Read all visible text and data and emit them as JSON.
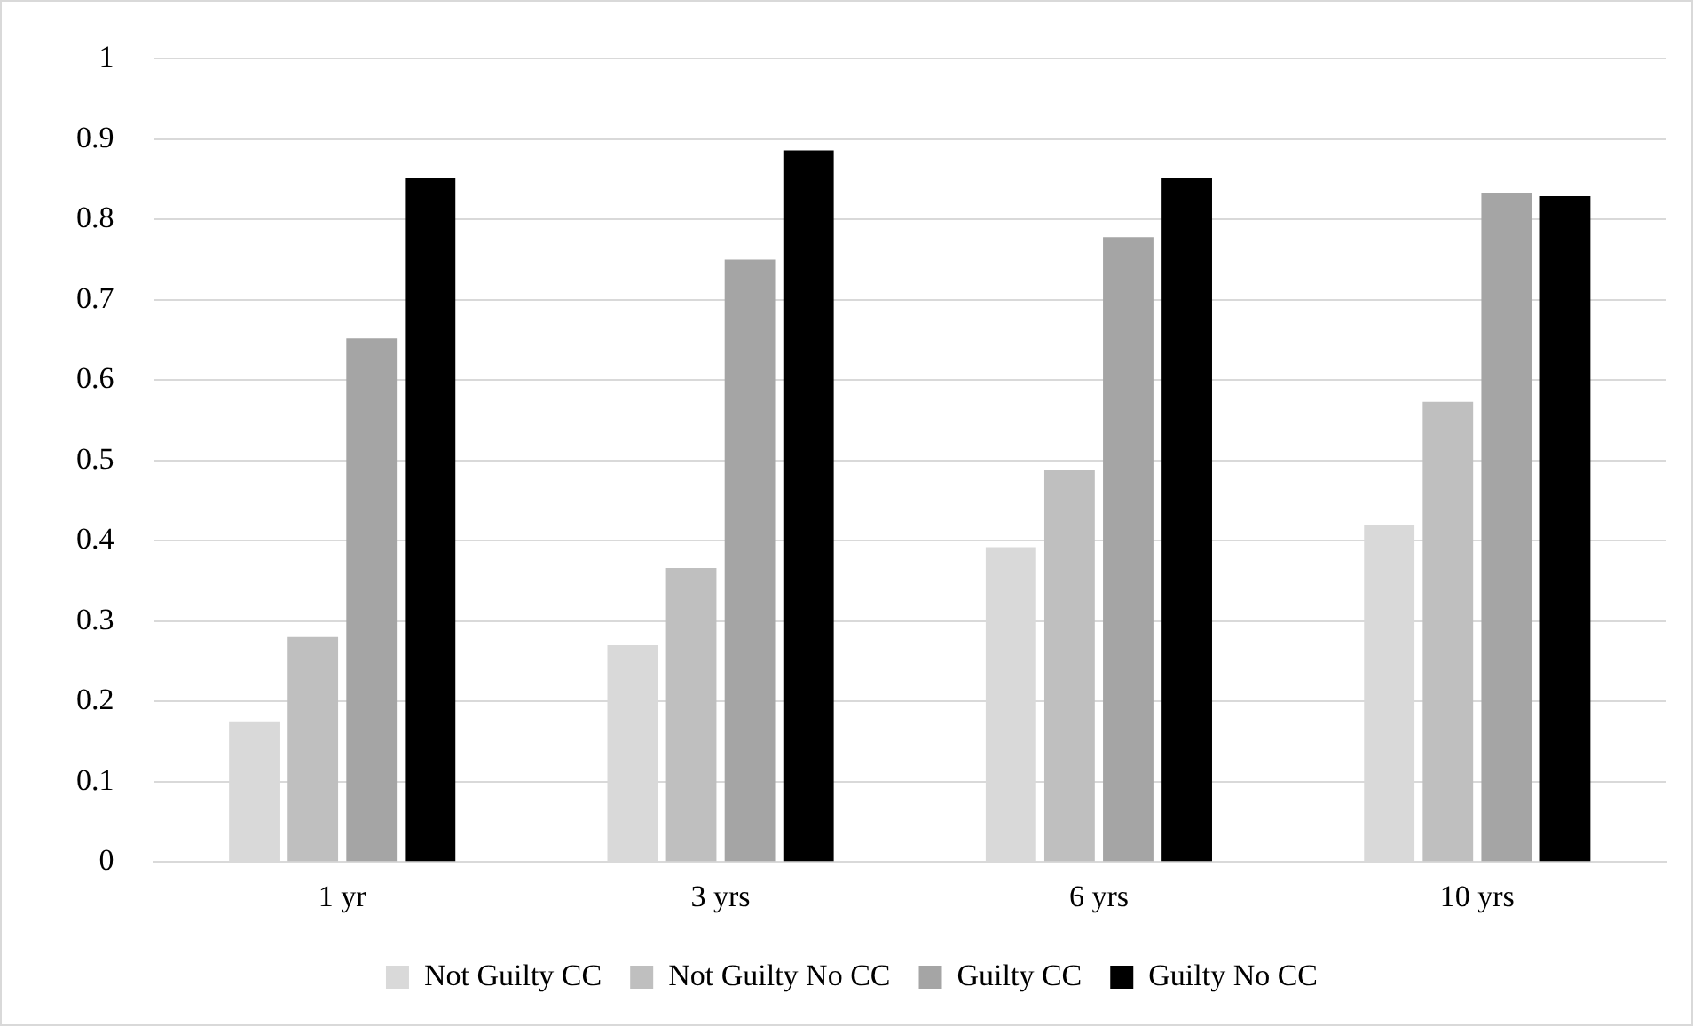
{
  "chart_data": {
    "type": "bar",
    "categories": [
      "1 yr",
      "3 yrs",
      "6 yrs",
      "10 yrs"
    ],
    "series": [
      {
        "name": "Not Guilty CC",
        "color": "#d9d9d9",
        "values": [
          0.175,
          0.27,
          0.392,
          0.419
        ]
      },
      {
        "name": "Not Guilty No CC",
        "color": "#bfbfbf",
        "values": [
          0.28,
          0.366,
          0.488,
          0.573
        ]
      },
      {
        "name": "Guilty CC",
        "color": "#a5a5a5",
        "values": [
          0.652,
          0.75,
          0.778,
          0.833
        ]
      },
      {
        "name": "Guilty No CC",
        "color": "#000000",
        "values": [
          0.852,
          0.886,
          0.852,
          0.829
        ]
      }
    ],
    "ylim": [
      0,
      1
    ],
    "yticks": [
      0,
      0.1,
      0.2,
      0.3,
      0.4,
      0.5,
      0.6,
      0.7,
      0.8,
      0.9,
      1
    ],
    "grid": "y",
    "legend": "bottom"
  }
}
